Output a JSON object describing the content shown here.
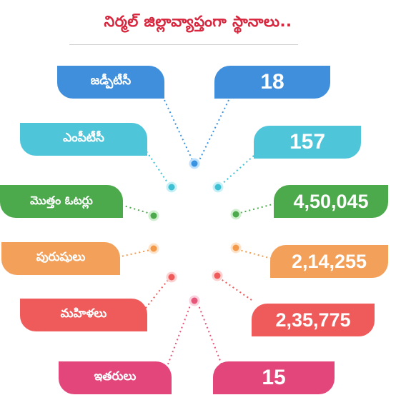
{
  "title": "నిర్మల్ జిల్లావ్యాప్తంగా స్థానాలు..",
  "colors": {
    "title": "#d7263d",
    "rows": [
      "#3f8fdc",
      "#4ec5d8",
      "#4caa4c",
      "#f3a05a",
      "#ef5b5b",
      "#e2467a"
    ],
    "connector_dots": [
      "#3a93e0",
      "#3ec0d4",
      "#4caa4c",
      "#f39a4a",
      "#ef5b5b",
      "#e6557a"
    ]
  },
  "stats": [
    {
      "label": "జడ్పీటీసీ",
      "value": "18"
    },
    {
      "label": "ఎంపీటీసీ",
      "value": "157"
    },
    {
      "label": "మొత్తం ఓటర్లు",
      "value": "4,50,045"
    },
    {
      "label": "పురుషులు",
      "value": "2,14,255"
    },
    {
      "label": "మహిళలు",
      "value": "2,35,775"
    },
    {
      "label": "ఇతరులు",
      "value": "15"
    }
  ]
}
